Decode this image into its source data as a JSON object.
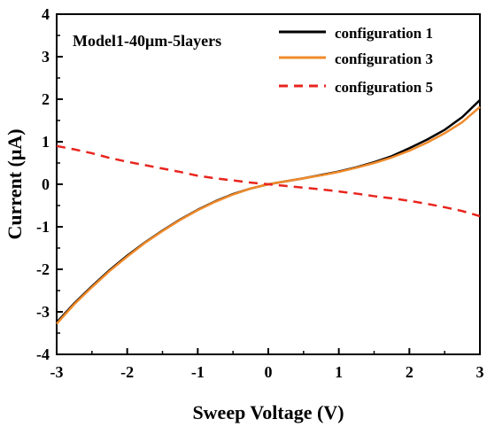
{
  "chart_data": {
    "type": "line",
    "annotation": "Model1-40μm-5layers",
    "xlabel": "Sweep Voltage (V)",
    "ylabel": "Current (μA)",
    "xlim": [
      -3,
      3
    ],
    "ylim": [
      -4,
      4
    ],
    "xticks": [
      "-3",
      "-2",
      "-1",
      "0",
      "1",
      "2",
      "3"
    ],
    "yticks": [
      "-4",
      "-3",
      "-2",
      "-1",
      "0",
      "1",
      "2",
      "3",
      "4"
    ],
    "grid": false,
    "legend_position": "top-right",
    "series": [
      {
        "name": "configuration 1",
        "color": "#000000",
        "style": "solid",
        "x": [
          -3,
          -2.75,
          -2.5,
          -2.25,
          -2,
          -1.75,
          -1.5,
          -1.25,
          -1,
          -0.75,
          -0.5,
          -0.25,
          0,
          0.25,
          0.5,
          0.75,
          1,
          1.25,
          1.5,
          1.75,
          2,
          2.25,
          2.5,
          2.75,
          3
        ],
        "y": [
          -3.25,
          -2.8,
          -2.4,
          -2.02,
          -1.68,
          -1.37,
          -1.09,
          -0.83,
          -0.6,
          -0.4,
          -0.23,
          -0.1,
          0,
          0.07,
          0.14,
          0.22,
          0.3,
          0.4,
          0.52,
          0.66,
          0.85,
          1.05,
          1.28,
          1.58,
          1.98
        ]
      },
      {
        "name": "configuration 3",
        "color": "#f08a2a",
        "style": "solid",
        "x": [
          -3,
          -2.75,
          -2.5,
          -2.25,
          -2,
          -1.75,
          -1.5,
          -1.25,
          -1,
          -0.75,
          -0.5,
          -0.25,
          0,
          0.25,
          0.5,
          0.75,
          1,
          1.25,
          1.5,
          1.75,
          2,
          2.25,
          2.5,
          2.75,
          3
        ],
        "y": [
          -3.28,
          -2.82,
          -2.42,
          -2.04,
          -1.7,
          -1.38,
          -1.1,
          -0.84,
          -0.61,
          -0.41,
          -0.24,
          -0.1,
          0,
          0.07,
          0.14,
          0.21,
          0.29,
          0.39,
          0.5,
          0.63,
          0.79,
          0.98,
          1.2,
          1.46,
          1.82
        ]
      },
      {
        "name": "configuration 5",
        "color": "#e8251e",
        "style": "dashed",
        "x": [
          -3,
          -2.75,
          -2.5,
          -2.25,
          -2,
          -1.75,
          -1.5,
          -1.25,
          -1,
          -0.75,
          -0.5,
          -0.25,
          0,
          0.25,
          0.5,
          0.75,
          1,
          1.25,
          1.5,
          1.75,
          2,
          2.25,
          2.5,
          2.75,
          3
        ],
        "y": [
          0.9,
          0.82,
          0.73,
          0.62,
          0.53,
          0.45,
          0.37,
          0.29,
          0.2,
          0.14,
          0.09,
          0.04,
          0,
          -0.04,
          -0.08,
          -0.12,
          -0.17,
          -0.22,
          -0.28,
          -0.33,
          -0.39,
          -0.46,
          -0.54,
          -0.63,
          -0.75
        ]
      }
    ]
  }
}
